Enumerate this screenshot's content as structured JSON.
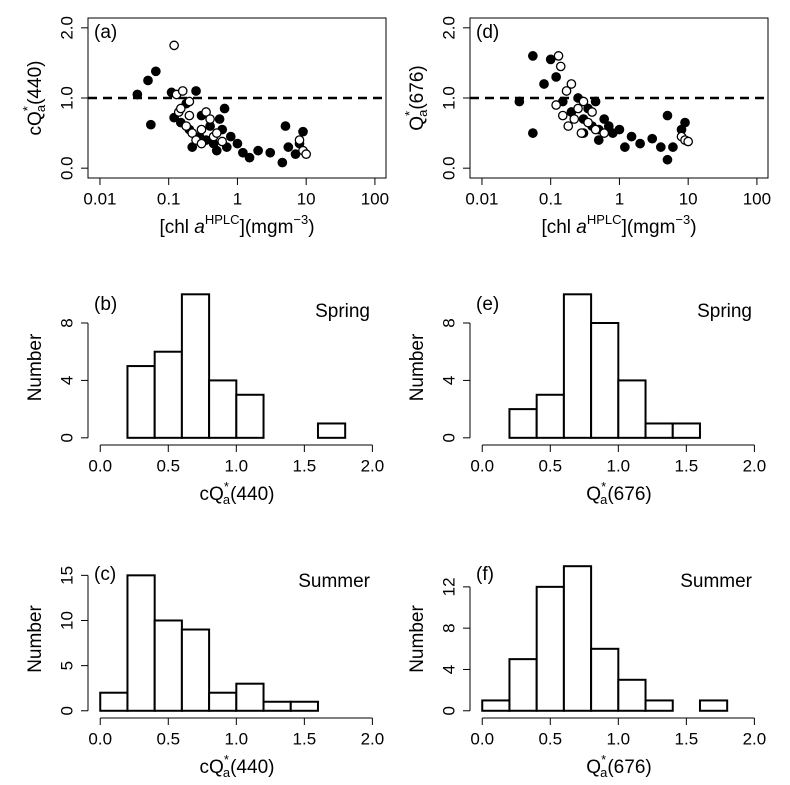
{
  "chart_data": [
    {
      "type": "scatter",
      "panel": "(a)",
      "xlog": true,
      "xlim": [
        0.0067,
        145
      ],
      "ylim": [
        -0.14,
        2.14
      ],
      "xticks": [
        0.01,
        0.1,
        1,
        10,
        100
      ],
      "yticks": [
        {
          "value": 0,
          "label": "0.0"
        },
        {
          "value": 1,
          "label": "1.0"
        },
        {
          "value": 2,
          "label": "2.0"
        }
      ],
      "hline": 1,
      "xlabel": [
        {
          "text": "[chl "
        },
        {
          "text": "a",
          "style": "italic"
        },
        {
          "text": "HPLC",
          "pos": "sup"
        },
        {
          "text": "](mgm"
        },
        {
          "text": "−3",
          "pos": "sup"
        },
        {
          "text": ")"
        }
      ],
      "ylabel": [
        {
          "text": "cQ"
        },
        {
          "text": "*",
          "pos": "sup"
        },
        {
          "text": "a",
          "pos": "sub"
        },
        {
          "text": "(440)"
        }
      ],
      "series": [
        {
          "color": "#000000",
          "filled": true,
          "x": [
            0.035,
            0.05,
            0.065,
            0.055,
            0.11,
            0.12,
            0.15,
            0.18,
            0.2,
            0.25,
            0.28,
            0.3,
            0.35,
            0.4,
            0.45,
            0.5,
            0.6,
            0.7,
            0.8,
            1.0,
            1.2,
            1.5,
            2,
            3,
            4.5,
            5,
            5.5,
            7,
            8,
            9,
            0.22,
            0.55,
            0.65
          ],
          "values": [
            1.05,
            1.25,
            1.38,
            0.62,
            1.08,
            0.72,
            0.65,
            0.92,
            0.55,
            1.1,
            0.45,
            0.75,
            0.4,
            0.6,
            0.35,
            0.25,
            0.55,
            0.3,
            0.45,
            0.35,
            0.22,
            0.15,
            0.25,
            0.22,
            0.08,
            0.6,
            0.3,
            0.2,
            0.35,
            0.52,
            0.3,
            0.7,
            0.85
          ]
        },
        {
          "color": "#000000",
          "filled": false,
          "x": [
            0.12,
            0.13,
            0.14,
            0.16,
            0.18,
            0.2,
            0.22,
            0.25,
            0.3,
            0.35,
            0.4,
            0.45,
            0.5,
            0.3,
            0.2,
            0.15,
            8,
            9,
            10,
            0.6
          ],
          "values": [
            1.75,
            1.05,
            0.8,
            1.1,
            0.6,
            0.75,
            0.5,
            0.4,
            0.55,
            0.8,
            0.7,
            0.45,
            0.5,
            0.35,
            0.95,
            0.85,
            0.4,
            0.25,
            0.2,
            0.38
          ]
        }
      ]
    },
    {
      "type": "scatter",
      "panel": "(d)",
      "xlog": true,
      "xlim": [
        0.0067,
        145
      ],
      "ylim": [
        -0.14,
        2.14
      ],
      "xticks": [
        0.01,
        0.1,
        1,
        10,
        100
      ],
      "yticks": [
        {
          "value": 0,
          "label": "0.0"
        },
        {
          "value": 1,
          "label": "1.0"
        },
        {
          "value": 2,
          "label": "2.0"
        }
      ],
      "hline": 1,
      "xlabel": [
        {
          "text": "[chl "
        },
        {
          "text": "a",
          "style": "italic"
        },
        {
          "text": "HPLC",
          "pos": "sup"
        },
        {
          "text": "](mgm"
        },
        {
          "text": "−3",
          "pos": "sup"
        },
        {
          "text": ")"
        }
      ],
      "ylabel": [
        {
          "text": "Q"
        },
        {
          "text": "*",
          "pos": "sup"
        },
        {
          "text": "a",
          "pos": "sub"
        },
        {
          "text": "(676)"
        }
      ],
      "series": [
        {
          "color": "#000000",
          "filled": true,
          "x": [
            0.035,
            0.055,
            0.055,
            0.08,
            0.1,
            0.12,
            0.15,
            0.2,
            0.25,
            0.3,
            0.35,
            0.4,
            0.45,
            0.5,
            0.6,
            0.7,
            0.8,
            1,
            1.2,
            1.5,
            2,
            3,
            4,
            5,
            5,
            6,
            8,
            9,
            0.5,
            0.3
          ],
          "values": [
            0.95,
            1.6,
            0.5,
            1.2,
            1.55,
            1.3,
            0.95,
            0.8,
            1.0,
            0.7,
            0.85,
            0.6,
            0.95,
            0.55,
            0.7,
            0.6,
            0.5,
            0.55,
            0.3,
            0.45,
            0.35,
            0.42,
            0.3,
            0.12,
            0.75,
            0.3,
            0.55,
            0.65,
            0.4,
            0.5
          ]
        },
        {
          "color": "#000000",
          "filled": false,
          "x": [
            0.13,
            0.14,
            0.12,
            0.15,
            0.17,
            0.2,
            0.22,
            0.25,
            0.3,
            0.35,
            0.4,
            0.45,
            0.18,
            0.28,
            8,
            9,
            10,
            0.6
          ],
          "values": [
            1.6,
            1.45,
            0.9,
            0.75,
            1.1,
            1.2,
            0.7,
            0.85,
            0.95,
            0.65,
            0.8,
            0.55,
            0.6,
            0.5,
            0.45,
            0.4,
            0.38,
            0.5
          ]
        }
      ]
    },
    {
      "type": "histogram",
      "panel": "(b)",
      "season": "Spring",
      "xlim": [
        -0.09,
        2.1
      ],
      "ylim": [
        -0.5,
        10.3
      ],
      "xticks": [
        {
          "value": 0,
          "label": "0.0"
        },
        0.5,
        {
          "value": 1,
          "label": "1.0"
        },
        1.5,
        {
          "value": 2,
          "label": "2.0"
        }
      ],
      "yticks": [
        0,
        4,
        8
      ],
      "xlabel": [
        {
          "text": "cQ"
        },
        {
          "text": "*",
          "pos": "sup"
        },
        {
          "text": "a",
          "pos": "sub"
        },
        {
          "text": "(440)"
        }
      ],
      "ylabel": [
        {
          "text": "Number"
        }
      ],
      "bins": [
        0.2,
        0.4,
        0.6,
        0.8,
        1.0,
        1.2,
        1.4,
        1.6,
        1.8
      ],
      "values": [
        5,
        6,
        10,
        4,
        3,
        0,
        0,
        1
      ]
    },
    {
      "type": "histogram",
      "panel": "(e)",
      "season": "Spring",
      "xlim": [
        -0.09,
        2.1
      ],
      "ylim": [
        -0.5,
        10.3
      ],
      "xticks": [
        {
          "value": 0,
          "label": "0.0"
        },
        0.5,
        {
          "value": 1,
          "label": "1.0"
        },
        1.5,
        {
          "value": 2,
          "label": "2.0"
        }
      ],
      "yticks": [
        0,
        4,
        8
      ],
      "xlabel": [
        {
          "text": "Q"
        },
        {
          "text": "*",
          "pos": "sup"
        },
        {
          "text": "a",
          "pos": "sub"
        },
        {
          "text": "(676)"
        }
      ],
      "ylabel": [
        {
          "text": "Number"
        }
      ],
      "bins": [
        0.2,
        0.4,
        0.6,
        0.8,
        1.0,
        1.2,
        1.4,
        1.6
      ],
      "values": [
        2,
        3,
        10,
        8,
        4,
        1,
        1
      ]
    },
    {
      "type": "histogram",
      "panel": "(c)",
      "season": "Summer",
      "xlim": [
        -0.09,
        2.1
      ],
      "ylim": [
        -0.8,
        16.7
      ],
      "xticks": [
        {
          "value": 0,
          "label": "0.0"
        },
        0.5,
        {
          "value": 1,
          "label": "1.0"
        },
        1.5,
        {
          "value": 2,
          "label": "2.0"
        }
      ],
      "yticks": [
        0,
        5,
        10,
        15
      ],
      "xlabel": [
        {
          "text": "cQ"
        },
        {
          "text": "*",
          "pos": "sup"
        },
        {
          "text": "a",
          "pos": "sub"
        },
        {
          "text": "(440)"
        }
      ],
      "ylabel": [
        {
          "text": "Number"
        }
      ],
      "bins": [
        0,
        0.2,
        0.4,
        0.6,
        0.8,
        1.0,
        1.2,
        1.4,
        1.6
      ],
      "values": [
        2,
        15,
        10,
        9,
        2,
        3,
        1,
        1
      ]
    },
    {
      "type": "histogram",
      "panel": "(f)",
      "season": "Summer",
      "xlim": [
        -0.09,
        2.1
      ],
      "ylim": [
        -0.7,
        14.6
      ],
      "xticks": [
        {
          "value": 0,
          "label": "0.0"
        },
        0.5,
        {
          "value": 1,
          "label": "1.0"
        },
        1.5,
        {
          "value": 2,
          "label": "2.0"
        }
      ],
      "yticks": [
        0,
        4,
        8,
        12
      ],
      "xlabel": [
        {
          "text": "Q"
        },
        {
          "text": "*",
          "pos": "sup"
        },
        {
          "text": "a",
          "pos": "sub"
        },
        {
          "text": "(676)"
        }
      ],
      "ylabel": [
        {
          "text": "Number"
        }
      ],
      "bins": [
        0,
        0.2,
        0.4,
        0.6,
        0.8,
        1.0,
        1.2,
        1.4,
        1.6,
        1.8
      ],
      "values": [
        1,
        5,
        12,
        14,
        6,
        3,
        1,
        0,
        1
      ]
    }
  ]
}
